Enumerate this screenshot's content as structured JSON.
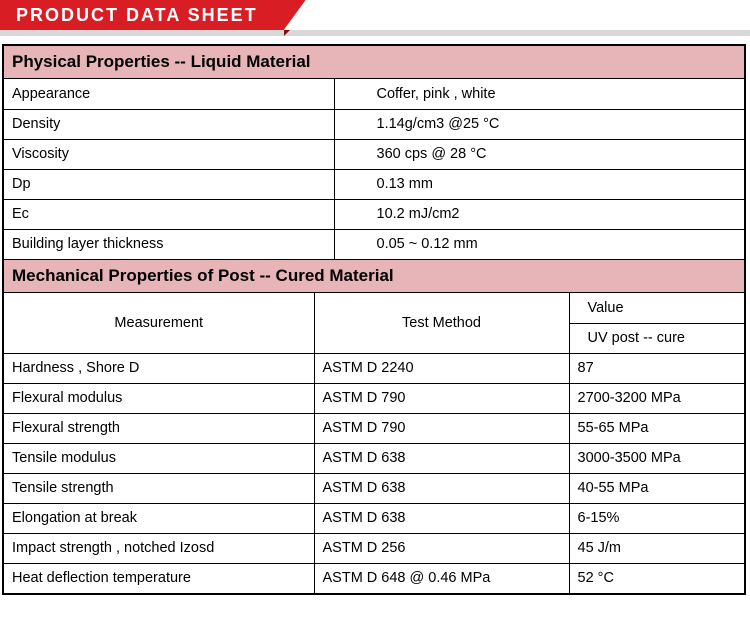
{
  "banner": {
    "title": "PRODUCT DATA SHEET"
  },
  "colors": {
    "banner_bg": "#d81e24",
    "banner_shadow": "#7a1214",
    "gray_strip": "#d9d9d9",
    "section_bg": "#e7b4b7",
    "border": "#000000"
  },
  "section1": {
    "title": "Physical Properties -- Liquid Material",
    "rows": [
      {
        "label": "Appearance",
        "value": "Coffer, pink , white"
      },
      {
        "label": "Density",
        "value": "1.14g/cm3 @25 °C"
      },
      {
        "label": "Viscosity",
        "value": "360 cps @ 28 °C"
      },
      {
        "label": "Dp",
        "value": "0.13 mm"
      },
      {
        "label": "Ec",
        "value": "10.2 mJ/cm2"
      },
      {
        "label": "Building layer thickness",
        "value": "0.05 ~ 0.12 mm"
      }
    ]
  },
  "section2": {
    "title": "Mechanical Properties of Post -- Cured Material",
    "headers": {
      "measurement": "Measurement",
      "test_method": "Test Method",
      "value": "Value",
      "uv": "UV post -- cure"
    },
    "rows": [
      {
        "m": "Hardness , Shore D",
        "t": "ASTM D 2240",
        "v": "87"
      },
      {
        "m": "Flexural modulus",
        "t": "ASTM D 790",
        "v": "2700-3200 MPa"
      },
      {
        "m": "Flexural strength",
        "t": "ASTM D 790",
        "v": "55-65 MPa"
      },
      {
        "m": "Tensile modulus",
        "t": "ASTM D 638",
        "v": "3000-3500 MPa"
      },
      {
        "m": "Tensile strength",
        "t": "ASTM D 638",
        "v": "40-55 MPa"
      },
      {
        "m": "Elongation  at  break",
        "t": "ASTM D 638",
        "v": "6-15%"
      },
      {
        "m": "Impact strength , notched Izosd",
        "t": "ASTM D 256",
        "v": "45 J/m"
      },
      {
        "m": "Heat deflection temperature",
        "t": "ASTM D 648 @ 0.46 MPa",
        "v": "52 °C"
      }
    ]
  }
}
